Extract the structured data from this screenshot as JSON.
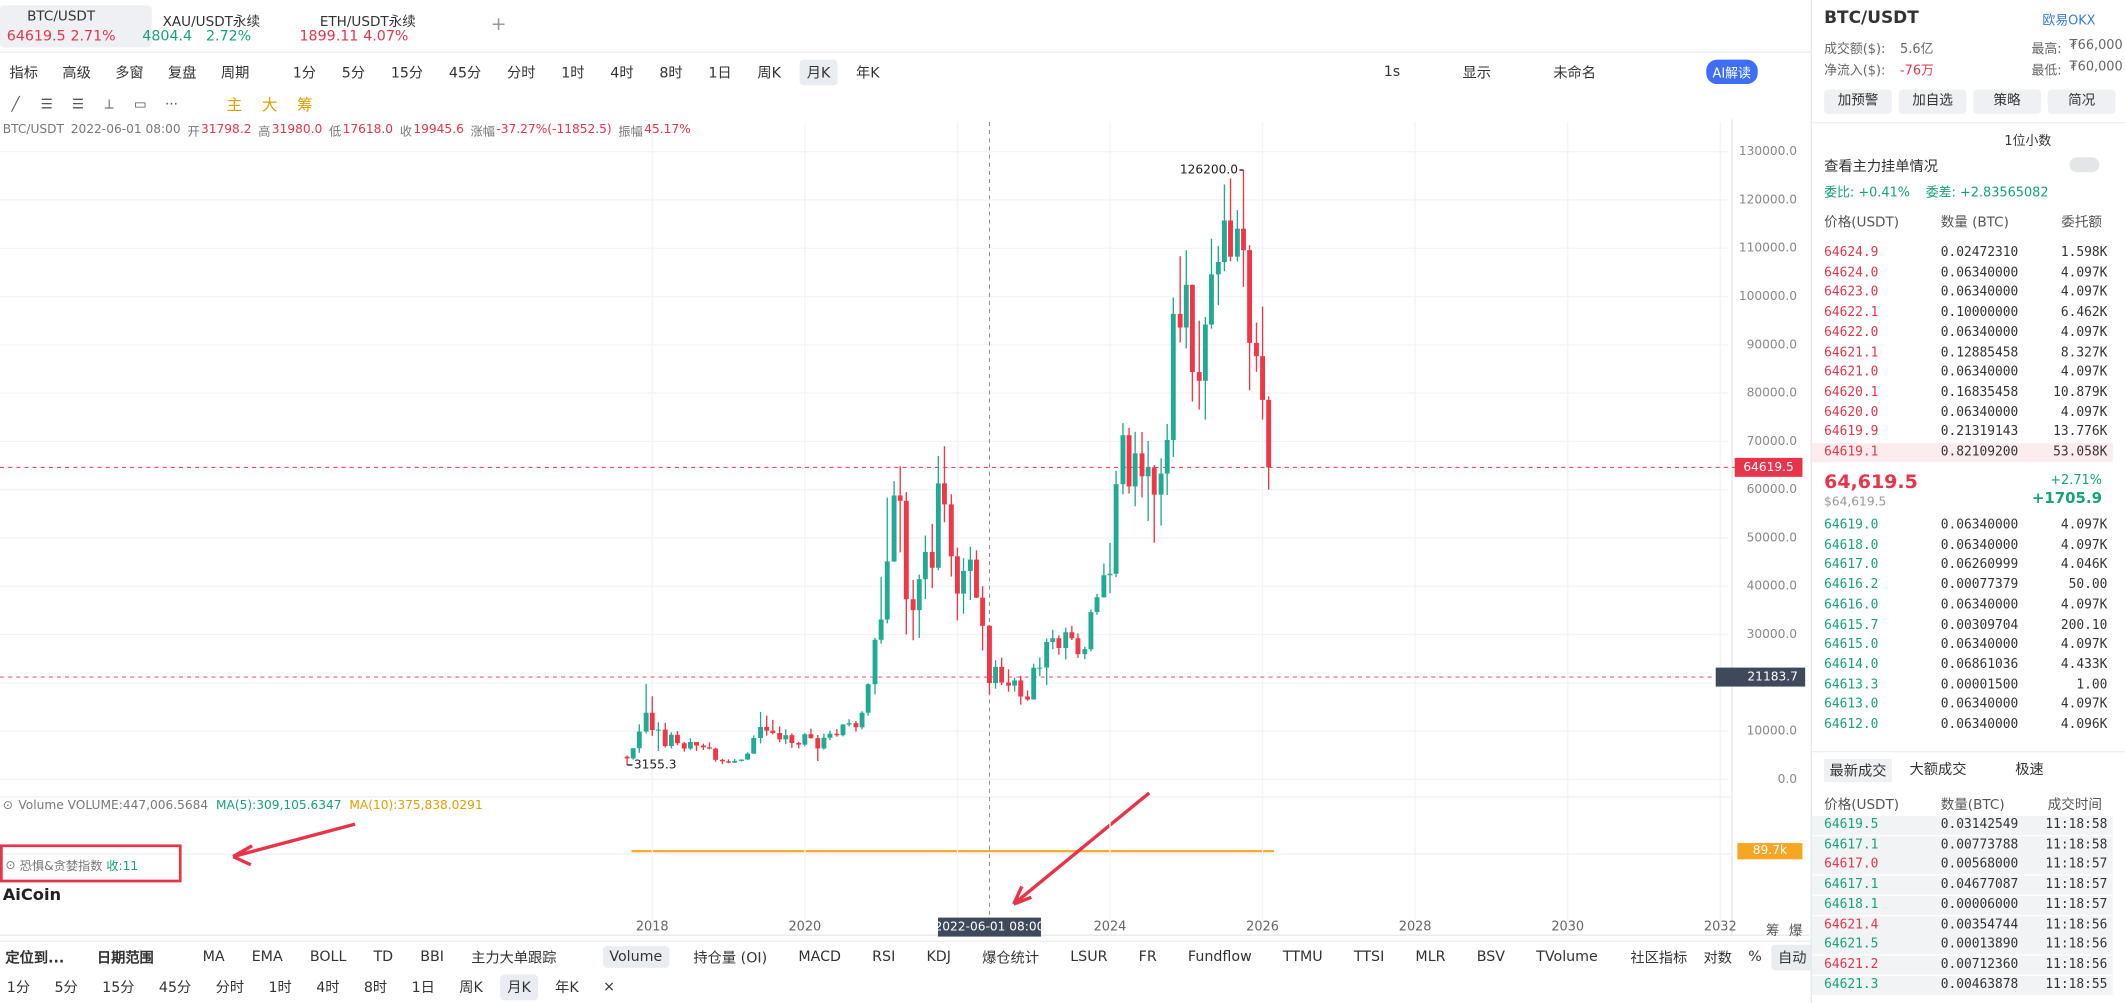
{
  "tabs": [
    {
      "symbol": "BTC/USDT",
      "price": "64619.5",
      "change": "2.71%",
      "color": "#e8344a"
    },
    {
      "symbol": "XAU/USDT永续",
      "price": "4804.4",
      "change": "2.72%",
      "color": "#16a37a"
    },
    {
      "symbol": "ETH/USDT永续",
      "price": "1899.11",
      "change": "4.07%",
      "color": "#e8344a"
    }
  ],
  "toolbar": {
    "left": [
      "指标",
      "高级",
      "多窗",
      "复盘",
      "周期"
    ],
    "periods": [
      "1分",
      "5分",
      "15分",
      "45分",
      "分时",
      "1时",
      "4时",
      "8时",
      "1日",
      "周K",
      "月K",
      "年K"
    ],
    "active_period": "月K",
    "right": [
      "1s",
      "显示",
      "未命名",
      "AI解读"
    ]
  },
  "draw_tools": [
    "主",
    "大",
    "筹"
  ],
  "ohlc_header": {
    "symbol": "BTC/USDT",
    "time": "2022-06-01 08:00",
    "open_label": "开",
    "open": "31798.2",
    "high_label": "高",
    "high": "31980.0",
    "low_label": "低",
    "low": "17618.0",
    "close_label": "收",
    "close": "19945.6",
    "change_label": "涨幅",
    "change": "-37.27%(-11852.5)",
    "amp_label": "振幅",
    "amp": "45.17%"
  },
  "chart_data": {
    "type": "candlestick",
    "up_color": "#22ab94",
    "down_color": "#f23645",
    "xlim": [
      2009.45,
      2032.1
    ],
    "xticks": [
      2018,
      2020,
      2022,
      2024,
      2026,
      2028,
      2030,
      2032
    ],
    "ylim": [
      -3650,
      136150
    ],
    "yticks": [
      {
        "value": 0,
        "label": "0.0"
      },
      {
        "value": 10000,
        "label": "10000.0"
      },
      {
        "value": 20000,
        "label": "20000.0"
      },
      {
        "value": 30000,
        "label": "30000.0"
      },
      {
        "value": 40000,
        "label": "40000.0"
      },
      {
        "value": 50000,
        "label": "50000.0"
      },
      {
        "value": 60000,
        "label": "60000.0"
      },
      {
        "value": 70000,
        "label": "70000.0"
      },
      {
        "value": 80000,
        "label": "80000.0"
      },
      {
        "value": 90000,
        "label": "90000.0"
      },
      {
        "value": 100000,
        "label": "100000.0"
      },
      {
        "value": 110000,
        "label": "110000.0"
      },
      {
        "value": 120000,
        "label": "120000.0"
      },
      {
        "value": 130000,
        "label": "130000.0"
      }
    ],
    "max_label": "126200.0",
    "min_label": "3155.3",
    "last_price": {
      "value": 64619.5,
      "color": "#e8344a"
    },
    "crosshair": {
      "x": 2022.42,
      "x_label": "2022-06-01 08:00",
      "y": 21183.7
    },
    "x": [
      2017.67,
      2017.75,
      2017.83,
      2017.92,
      2018.0,
      2018.08,
      2018.17,
      2018.25,
      2018.33,
      2018.42,
      2018.5,
      2018.58,
      2018.67,
      2018.75,
      2018.83,
      2018.92,
      2019.0,
      2019.08,
      2019.17,
      2019.25,
      2019.33,
      2019.42,
      2019.5,
      2019.58,
      2019.67,
      2019.75,
      2019.83,
      2019.92,
      2020.0,
      2020.08,
      2020.17,
      2020.25,
      2020.33,
      2020.42,
      2020.5,
      2020.58,
      2020.67,
      2020.75,
      2020.83,
      2020.92,
      2021.0,
      2021.08,
      2021.17,
      2021.25,
      2021.33,
      2021.42,
      2021.5,
      2021.58,
      2021.67,
      2021.75,
      2021.83,
      2021.92,
      2022.0,
      2022.08,
      2022.17,
      2022.25,
      2022.33,
      2022.42,
      2022.5,
      2022.58,
      2022.67,
      2022.75,
      2022.83,
      2022.92,
      2023.0,
      2023.08,
      2023.17,
      2023.25,
      2023.33,
      2023.42,
      2023.5,
      2023.58,
      2023.67,
      2023.75,
      2023.83,
      2023.92,
      2024.0,
      2024.08,
      2024.17,
      2024.25,
      2024.33,
      2024.42,
      2024.5,
      2024.58,
      2024.67,
      2024.75,
      2024.83,
      2024.92,
      2025.0,
      2025.08,
      2025.17,
      2025.25,
      2025.33,
      2025.42,
      2025.5,
      2025.58,
      2025.67,
      2025.75,
      2025.83,
      2025.92,
      2026.0,
      2026.08
    ],
    "ohlc": [
      [
        4700,
        4950,
        2980,
        4340
      ],
      [
        4340,
        6470,
        4100,
        6450
      ],
      [
        6450,
        11400,
        5500,
        9900
      ],
      [
        9900,
        19800,
        9500,
        13800
      ],
      [
        13800,
        17200,
        9000,
        10200
      ],
      [
        10200,
        11800,
        5900,
        10300
      ],
      [
        10300,
        11700,
        6600,
        6900
      ],
      [
        6900,
        9750,
        6400,
        9240
      ],
      [
        9240,
        10000,
        7050,
        7480
      ],
      [
        7480,
        7750,
        5750,
        6390
      ],
      [
        6390,
        8500,
        6070,
        7730
      ],
      [
        7730,
        7760,
        5880,
        7010
      ],
      [
        7010,
        7400,
        6100,
        6630
      ],
      [
        6630,
        7680,
        6200,
        6370
      ],
      [
        6370,
        6580,
        3650,
        4040
      ],
      [
        4040,
        4250,
        3155.3,
        3740
      ],
      [
        3740,
        4140,
        3350,
        3460
      ],
      [
        3460,
        4200,
        3400,
        3830
      ],
      [
        3830,
        4140,
        3690,
        4100
      ],
      [
        4100,
        5600,
        4050,
        5320
      ],
      [
        5320,
        9100,
        5300,
        8570
      ],
      [
        8570,
        13970,
        7450,
        10850
      ],
      [
        10850,
        13200,
        9060,
        10090
      ],
      [
        10090,
        12330,
        9320,
        9600
      ],
      [
        9600,
        10950,
        7710,
        8290
      ],
      [
        8290,
        10370,
        7300,
        9150
      ],
      [
        9150,
        9510,
        6520,
        7540
      ],
      [
        7540,
        7750,
        6430,
        7200
      ],
      [
        7200,
        9580,
        6850,
        9350
      ],
      [
        9350,
        10500,
        8450,
        8530
      ],
      [
        8530,
        9190,
        3800,
        6410
      ],
      [
        6410,
        9470,
        6150,
        8620
      ],
      [
        8620,
        10070,
        8110,
        9450
      ],
      [
        9450,
        10380,
        8830,
        9140
      ],
      [
        9140,
        11450,
        8900,
        11350
      ],
      [
        11350,
        12470,
        10950,
        11650
      ],
      [
        11650,
        12090,
        9880,
        10780
      ],
      [
        10780,
        14100,
        10370,
        13800
      ],
      [
        13800,
        19900,
        13200,
        19700
      ],
      [
        19700,
        29300,
        17600,
        28900
      ],
      [
        28900,
        41950,
        28100,
        33100
      ],
      [
        33100,
        58350,
        32300,
        45140
      ],
      [
        45140,
        61780,
        45000,
        58800
      ],
      [
        58800,
        64850,
        47000,
        57700
      ],
      [
        57700,
        59500,
        30000,
        37300
      ],
      [
        37300,
        41300,
        28800,
        35040
      ],
      [
        35040,
        42400,
        29300,
        41460
      ],
      [
        41460,
        50500,
        37330,
        47100
      ],
      [
        47100,
        52920,
        39600,
        43820
      ],
      [
        43820,
        67000,
        43280,
        61300
      ],
      [
        61300,
        69000,
        53250,
        56950
      ],
      [
        56950,
        59050,
        42000,
        46200
      ],
      [
        46200,
        48000,
        32900,
        38470
      ],
      [
        38470,
        45820,
        34300,
        43160
      ],
      [
        43160,
        48190,
        37150,
        45510
      ],
      [
        45510,
        47440,
        37580,
        37630
      ],
      [
        37630,
        40000,
        26700,
        31798.2
      ],
      [
        31798.2,
        31980,
        17618,
        19945.6
      ],
      [
        19945.6,
        24670,
        18780,
        23290
      ],
      [
        23290,
        25200,
        19520,
        20050
      ],
      [
        20050,
        22800,
        18150,
        19420
      ],
      [
        19420,
        21090,
        18190,
        20490
      ],
      [
        20490,
        21480,
        15480,
        17160
      ],
      [
        17160,
        18400,
        16250,
        16540
      ],
      [
        16540,
        23960,
        16500,
        23120
      ],
      [
        23120,
        25250,
        21350,
        23140
      ],
      [
        23140,
        29190,
        19550,
        28460
      ],
      [
        28460,
        31000,
        26940,
        29230
      ],
      [
        29230,
        29820,
        25810,
        27210
      ],
      [
        27210,
        31430,
        24800,
        30470
      ],
      [
        30470,
        31800,
        28860,
        29230
      ],
      [
        29230,
        30240,
        25170,
        25930
      ],
      [
        25930,
        27480,
        24900,
        26960
      ],
      [
        26960,
        35200,
        26540,
        34640
      ],
      [
        34640,
        38450,
        34100,
        37720
      ],
      [
        37720,
        44700,
        37620,
        42280
      ],
      [
        42280,
        48970,
        38550,
        42580
      ],
      [
        42580,
        63900,
        41880,
        61130
      ],
      [
        61130,
        73780,
        59000,
        71280
      ],
      [
        71280,
        72800,
        59190,
        60670
      ],
      [
        60670,
        71980,
        56550,
        67520
      ],
      [
        67520,
        71950,
        58400,
        62770
      ],
      [
        62770,
        70080,
        53500,
        64620
      ],
      [
        64620,
        65100,
        49000,
        58970
      ],
      [
        58970,
        66500,
        52550,
        63330
      ],
      [
        63330,
        73620,
        58890,
        70290
      ],
      [
        70290,
        99800,
        66800,
        96400
      ],
      [
        96400,
        108350,
        90500,
        93580
      ],
      [
        93580,
        109590,
        89250,
        102430
      ],
      [
        102430,
        102500,
        78250,
        84350
      ],
      [
        84350,
        95000,
        76600,
        82550
      ],
      [
        82550,
        95750,
        74500,
        94200
      ],
      [
        94200,
        111980,
        93350,
        104600
      ],
      [
        104600,
        110500,
        98200,
        107150
      ],
      [
        107150,
        123200,
        105250,
        115750
      ],
      [
        115750,
        124450,
        107300,
        108250
      ],
      [
        108250,
        117900,
        107250,
        114050
      ],
      [
        114050,
        126200,
        102000,
        109600
      ],
      [
        109600,
        110650,
        80600,
        90400
      ],
      [
        90400,
        94600,
        84400,
        87650
      ],
      [
        87650,
        97900,
        74500,
        78600
      ],
      [
        78600,
        79300,
        60000,
        64619.5
      ]
    ]
  },
  "volume_pane": {
    "label": "Volume",
    "value": "VOLUME:447,006.5684",
    "ma5": "MA(5):309,105.6347",
    "ma10": "MA(10):375,838.0291",
    "axis_label": "89.7k"
  },
  "fear_pane": {
    "label": "恐惧&贪婪指数",
    "value": "收:11"
  },
  "logo": "AiCoin",
  "right_axis_extra": [
    "筹",
    "爆"
  ],
  "bottom": {
    "locate": "定位到...",
    "range": "日期范围",
    "main_indicators": [
      "MA",
      "EMA",
      "BOLL",
      "TD",
      "BBI",
      "主力大单跟踪"
    ],
    "sub_indicators": [
      "Volume",
      "持仓量 (OI)",
      "MACD",
      "RSI",
      "KDJ",
      "爆仓统计",
      "LSUR",
      "FR",
      "Fundflow",
      "TTMU",
      "TTSI",
      "MLR",
      "BSV",
      "TVolume"
    ],
    "right": [
      "社区指标",
      "对数",
      "%",
      "自动"
    ],
    "periods": [
      "1分",
      "5分",
      "15分",
      "45分",
      "分时",
      "1时",
      "4时",
      "8时",
      "1日",
      "周K",
      "月K",
      "年K",
      "×"
    ]
  },
  "panel": {
    "symbol": "BTC/USDT",
    "exchange": "欧易OKX",
    "stats": [
      [
        "成交额($):",
        "5.6亿"
      ],
      [
        "最高:",
        "₮66,000"
      ],
      [
        "净流入($):",
        "-76万"
      ],
      [
        "最低:",
        "₮60,000"
      ]
    ],
    "buttons": [
      "加预警",
      "加自选",
      "策略",
      "简况"
    ],
    "decimals": "1位小数",
    "main_orders": "查看主力挂单情况",
    "ratio": "委比: +0.41%",
    "diff": "委差: +2.83565082",
    "book_headers": [
      "价格(USDT)",
      "数量 (BTC)",
      "委托额"
    ],
    "asks": [
      [
        "64624.9",
        "0.02472310",
        "1.598K"
      ],
      [
        "64624.0",
        "0.06340000",
        "4.097K"
      ],
      [
        "64623.0",
        "0.06340000",
        "4.097K"
      ],
      [
        "64622.1",
        "0.10000000",
        "6.462K"
      ],
      [
        "64622.0",
        "0.06340000",
        "4.097K"
      ],
      [
        "64621.1",
        "0.12885458",
        "8.327K"
      ],
      [
        "64621.0",
        "0.06340000",
        "4.097K"
      ],
      [
        "64620.1",
        "0.16835458",
        "10.879K"
      ],
      [
        "64620.0",
        "0.06340000",
        "4.097K"
      ],
      [
        "64619.9",
        "0.21319143",
        "13.776K"
      ],
      [
        "64619.1",
        "0.82109200",
        "53.058K"
      ]
    ],
    "mid_price": "64,619.5",
    "mid_usd": "$64,619.5",
    "mid_change": "+2.71%",
    "mid_diff": "+1705.9",
    "bids": [
      [
        "64619.0",
        "0.06340000",
        "4.097K"
      ],
      [
        "64618.0",
        "0.06340000",
        "4.097K"
      ],
      [
        "64617.0",
        "0.06260999",
        "4.046K"
      ],
      [
        "64616.2",
        "0.00077379",
        "50.00"
      ],
      [
        "64616.0",
        "0.06340000",
        "4.097K"
      ],
      [
        "64615.7",
        "0.00309704",
        "200.10"
      ],
      [
        "64615.0",
        "0.06340000",
        "4.097K"
      ],
      [
        "64614.0",
        "0.06861036",
        "4.433K"
      ],
      [
        "64613.3",
        "0.00001500",
        "1.00"
      ],
      [
        "64613.0",
        "0.06340000",
        "4.097K"
      ],
      [
        "64612.0",
        "0.06340000",
        "4.096K"
      ]
    ],
    "trade_tabs": [
      "最新成交",
      "大额成交",
      "极速"
    ],
    "trade_headers": [
      "价格(USDT)",
      "数量(BTC)",
      "成交时间"
    ],
    "trades": [
      {
        "price": "64619.5",
        "qty": "0.03142549",
        "time": "11:18:58",
        "color": "#16a37a"
      },
      {
        "price": "64617.1",
        "qty": "0.00773788",
        "time": "11:18:58",
        "color": "#16a37a"
      },
      {
        "price": "64617.0",
        "qty": "0.00568000",
        "time": "11:18:57",
        "color": "#e8344a"
      },
      {
        "price": "64617.1",
        "qty": "0.04677087",
        "time": "11:18:57",
        "color": "#16a37a"
      },
      {
        "price": "64618.1",
        "qty": "0.00006000",
        "time": "11:18:57",
        "color": "#16a37a"
      },
      {
        "price": "64621.4",
        "qty": "0.00354744",
        "time": "11:18:56",
        "color": "#e8344a"
      },
      {
        "price": "64621.5",
        "qty": "0.00013890",
        "time": "11:18:56",
        "color": "#16a37a"
      },
      {
        "price": "64621.2",
        "qty": "0.00712360",
        "time": "11:18:56",
        "color": "#e8344a"
      },
      {
        "price": "64621.3",
        "qty": "0.00463878",
        "time": "11:18:55",
        "color": "#16a37a"
      }
    ]
  }
}
